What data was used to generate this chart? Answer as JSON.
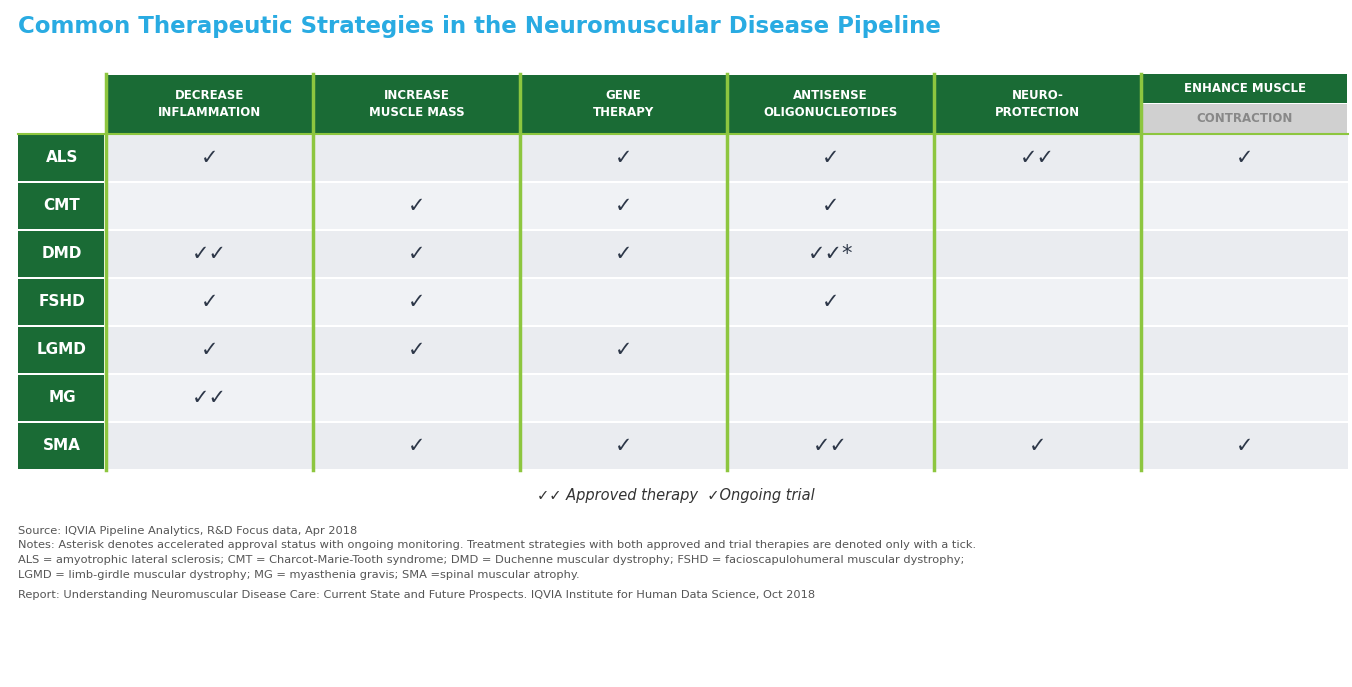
{
  "title": "Common Therapeutic Strategies in the Neuromuscular Disease Pipeline",
  "title_color": "#29ABE2",
  "col_headers": [
    "DECREASE\nINFLAMMATION",
    "INCREASE\nMUSCLE MASS",
    "GENE\nTHERAPY",
    "ANTISENSE\nOLIGONUCLEOTIDES",
    "NEURO-\nPROTECTION",
    "ENHANCE MUSCLE\nCONTRACTION"
  ],
  "row_labels": [
    "ALS",
    "CMT",
    "DMD",
    "FSHD",
    "LGMD",
    "MG",
    "SMA"
  ],
  "header_bg": "#1a6b35",
  "header_text": "#ffffff",
  "row_label_bg": "#1a6b35",
  "row_label_text": "#ffffff",
  "row_bg_alt1": "#eaecf0",
  "row_bg_alt2": "#f0f2f5",
  "check_color": "#2d3748",
  "divider_color": "#8dc63f",
  "table_data": [
    [
      "✓",
      "",
      "✓",
      "✓",
      "✓✓",
      "✓"
    ],
    [
      "",
      "✓",
      "✓",
      "✓",
      "",
      ""
    ],
    [
      "✓✓",
      "✓",
      "✓",
      "✓✓*",
      "",
      ""
    ],
    [
      "✓",
      "✓",
      "",
      "✓",
      "",
      ""
    ],
    [
      "✓",
      "✓",
      "✓",
      "",
      "",
      ""
    ],
    [
      "✓✓",
      "",
      "",
      "",
      "",
      ""
    ],
    [
      "",
      "✓",
      "✓",
      "✓✓",
      "✓",
      "✓"
    ]
  ],
  "legend_check2": "✓✓",
  "legend_approved": " Approved therapy  ",
  "legend_check1": "✓",
  "legend_trial": "Ongoing trial",
  "source_text": "Source: IQVIA Pipeline Analytics, R&D Focus data, Apr 2018",
  "notes_line1": "Notes: Asterisk denotes accelerated approval status with ongoing monitoring. Treatment strategies with both approved and trial therapies are denoted only with a tick.",
  "notes_line2": "ALS = amyotrophic lateral sclerosis; CMT = Charcot-Marie-Tooth syndrome; DMD = Duchenne muscular dystrophy; FSHD = facioscapulohumeral muscular dystrophy;",
  "notes_line3": "LGMD = limb-girdle muscular dystrophy; MG = myasthenia gravis; SMA =spinal muscular atrophy.",
  "report_text": "Report: Understanding Neuromuscular Disease Care: Current State and Future Prospects. IQVIA Institute for Human Data Science, Oct 2018",
  "last_col_header_top_bg": "#1a6b35",
  "last_col_header_bot_bg": "#d0d0d0",
  "last_col_header_top_text": "#ffffff",
  "last_col_header_bot_text": "#888888"
}
